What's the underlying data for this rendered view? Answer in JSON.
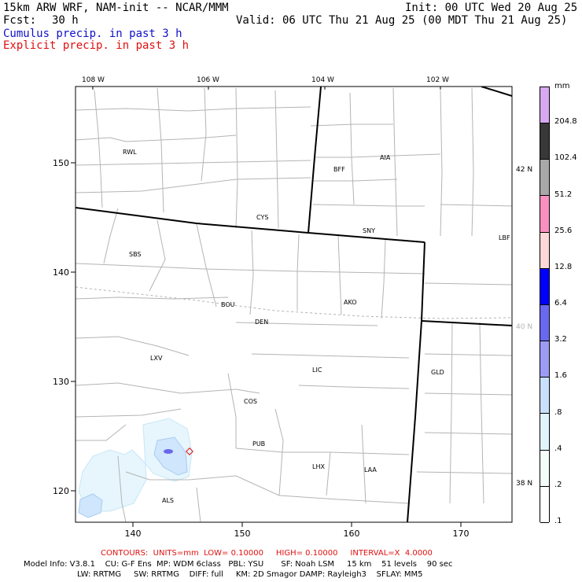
{
  "header": {
    "title": "15km ARW WRF, NAM-init -- NCAR/MMM",
    "init": "Init: 00 UTC Wed 20 Aug 25",
    "fcst_label": "Fcst:",
    "fcst_value": "30 h",
    "valid": "Valid: 06 UTC Thu 21 Aug 25 (00 MDT Thu 21 Aug 25)",
    "cumulus": "Cumulus precip. in past 3 h",
    "explicit": "Explicit precip. in past 3 h"
  },
  "map": {
    "lon_labels": [
      "108 W",
      "106 W",
      "104 W",
      "102 W"
    ],
    "lat_labels": [
      "42 N",
      "40 N",
      "38 N"
    ],
    "y_ticks": [
      "150",
      "140",
      "130",
      "120"
    ],
    "x_ticks": [
      "140",
      "150",
      "160",
      "170"
    ],
    "cities": [
      "RWL",
      "BFF",
      "AIA",
      "CYS",
      "SNY",
      "LBF",
      "SBS",
      "BOU",
      "AKO",
      "DEN",
      "LXV",
      "LIC",
      "GLD",
      "COS",
      "PUB",
      "LHX",
      "LAA",
      "ALS"
    ]
  },
  "colorbar": {
    "unit": "mm",
    "labels": [
      "204.8",
      "102.4",
      "51.2",
      "25.6",
      "12.8",
      "6.4",
      "3.2",
      "1.6",
      ".8",
      ".4",
      ".2",
      ".1"
    ],
    "colors": [
      "#d8a8f0",
      "#383838",
      "#a8a8a8",
      "#f890c0",
      "#fcd8d8",
      "#0000ff",
      "#6868f0",
      "#9c9cf4",
      "#c8e0fc",
      "#e0f4fc",
      "#f4fcfc",
      "#ffffff"
    ]
  },
  "footer": {
    "contours": "CONTOURS:  UNITS=mm  LOW= 0.10000     HIGH= 0.10000     INTERVAL=X  4.0000",
    "model_line1": "Model Info: V3.8.1    CU: G-F Ens  MP: WDM 6class   PBL: YSU       SF: Noah LSM     15 km    51 levels    90 sec",
    "model_line2": "LW: RRTMG     SW: RRTMG    DIFF: full     KM: 2D Smagor DAMP: Rayleigh3    SFLAY: MM5"
  }
}
